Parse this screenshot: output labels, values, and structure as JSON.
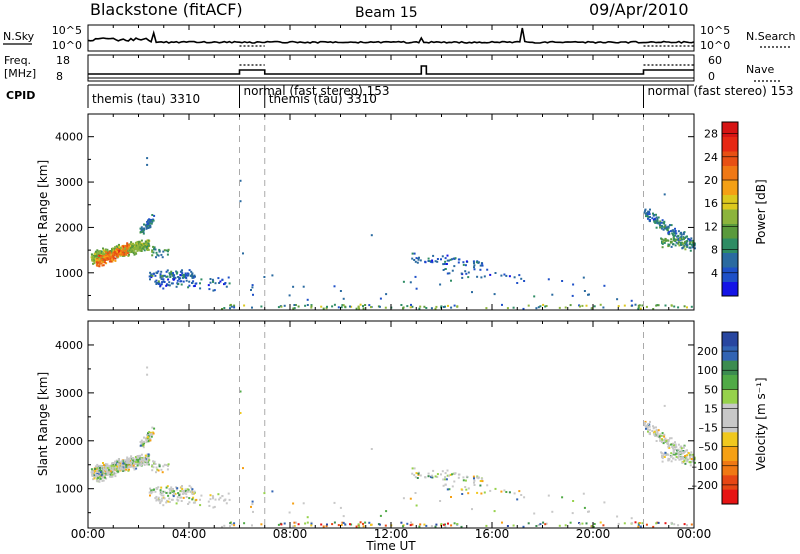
{
  "header": {
    "station": "Blackstone (fitACF)",
    "beam": "Beam 15",
    "date": "09/Apr/2010"
  },
  "top_panels": {
    "nsky_label": "N.Sky",
    "nsky_scale": {
      "top": "10^5",
      "bottom": "10^0"
    },
    "nsearch_label": "N.Search",
    "nsearch_scale": {
      "top": "10^5",
      "bottom": "10^0"
    },
    "freq_label_1": "Freq.",
    "freq_label_2": "[MHz]",
    "freq_ticks": [
      "18",
      "8"
    ],
    "nave_label": "Nave",
    "nave_ticks": [
      "60",
      "0"
    ],
    "cpid_label": "CPID"
  },
  "cpid_segments": [
    {
      "label": "themis (tau) 3310",
      "start_hour": 0.0
    },
    {
      "label": "normal (fast stereo) 153",
      "start_hour": 6.0
    },
    {
      "label": "themis (tau) 3310",
      "start_hour": 7.0
    },
    {
      "label": "normal (fast stereo) 153",
      "start_hour": 22.0
    }
  ],
  "chart_data": [
    {
      "type": "heatmap",
      "quantity": "power",
      "ylabel": "Slant Range [km]",
      "xlabel": "",
      "xlim": [
        0,
        24
      ],
      "ylim": [
        180,
        4500
      ],
      "yticks": [
        "1000",
        "2000",
        "3000",
        "4000"
      ],
      "colorbar": {
        "label": "Power [dB]",
        "ticks": [
          "4",
          "8",
          "12",
          "16",
          "20",
          "24",
          "28"
        ],
        "range": [
          0,
          30
        ],
        "colors": [
          "#1414e6",
          "#1e50c8",
          "#2a6aa0",
          "#2e8c64",
          "#5a9a3c",
          "#8cb43c",
          "#dcc81e",
          "#f5a014",
          "#f07814",
          "#e85014",
          "#e62814",
          "#d61414"
        ]
      },
      "dashed_lines_hours": [
        6.0,
        7.0,
        22.0
      ]
    },
    {
      "type": "heatmap",
      "quantity": "velocity",
      "ylabel": "Slant Range [km]",
      "xlabel": "Time UT",
      "xlim": [
        0,
        24
      ],
      "ylim": [
        180,
        4500
      ],
      "yticks": [
        "1000",
        "2000",
        "3000",
        "4000"
      ],
      "xticks": [
        "00:00",
        "04:00",
        "08:00",
        "12:00",
        "16:00",
        "20:00",
        "00:00"
      ],
      "colorbar": {
        "label": "Velocity [m s⁻¹]",
        "ticks": [
          "200",
          "100",
          "50",
          "15",
          "–15",
          "–50",
          "–100",
          "–200"
        ],
        "colors": [
          "#2846a0",
          "#3264b4",
          "#3c8c50",
          "#50aa46",
          "#96d24b",
          "#c8c8c8",
          "#c8c8c8",
          "#f0c81e",
          "#f5a014",
          "#f07814",
          "#e64614",
          "#e61414"
        ]
      },
      "dashed_lines_hours": [
        6.0,
        7.0,
        22.0
      ]
    }
  ]
}
